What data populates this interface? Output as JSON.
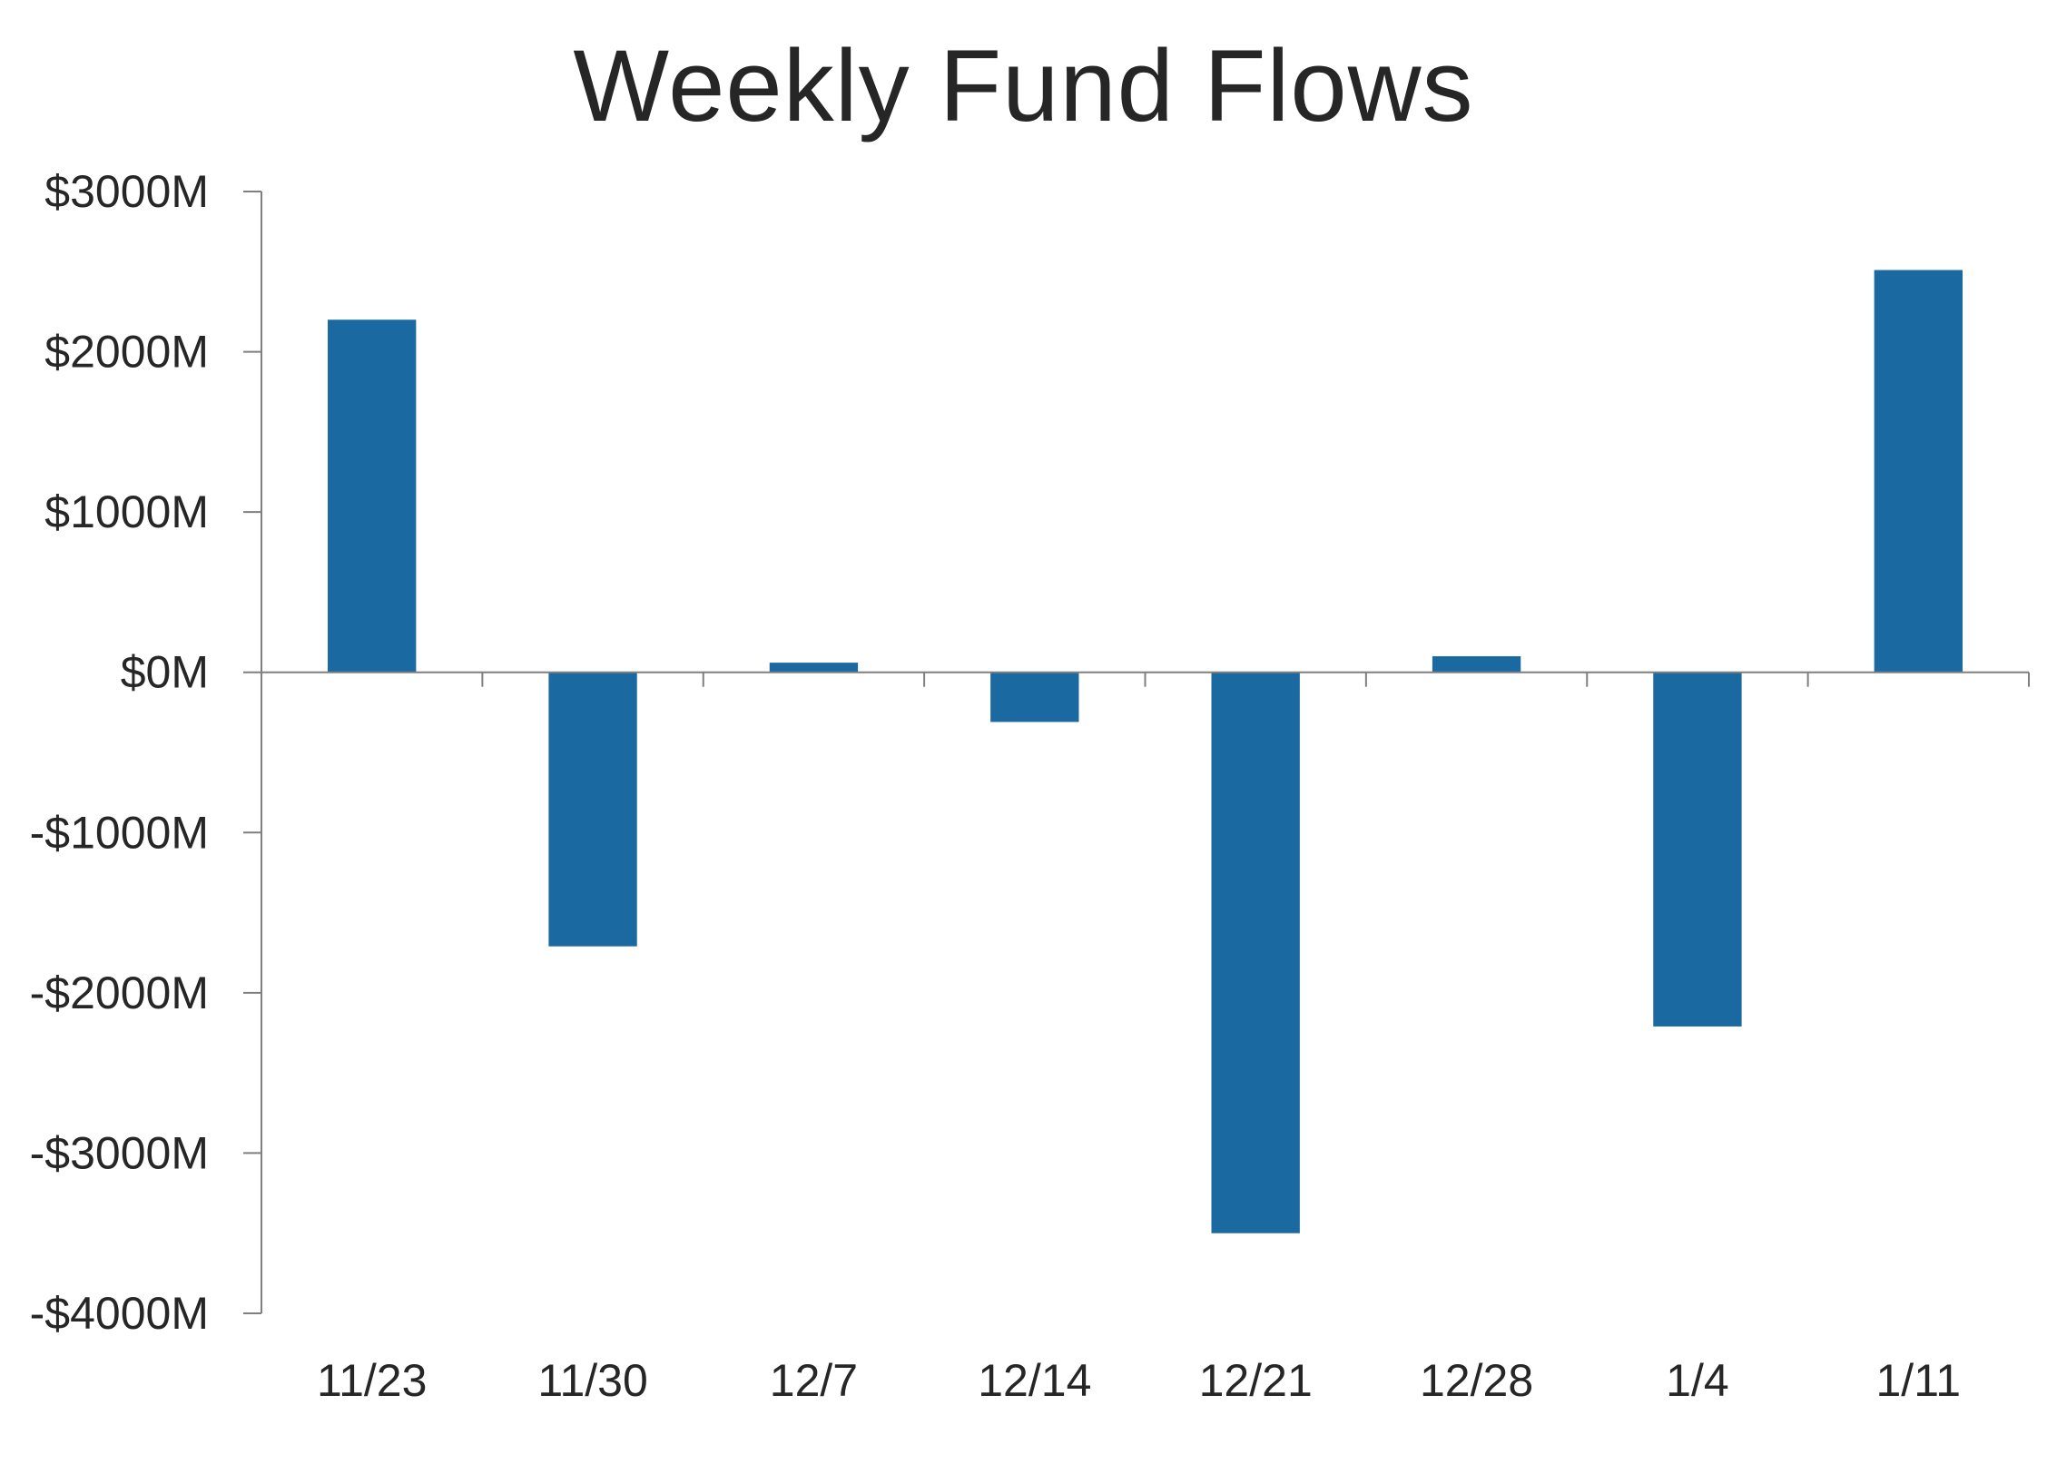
{
  "chart_data": {
    "type": "bar",
    "title": "Weekly Fund Flows",
    "xlabel": "",
    "ylabel": "",
    "categories": [
      "11/23",
      "11/30",
      "12/7",
      "12/14",
      "12/21",
      "12/28",
      "1/4",
      "1/11"
    ],
    "values": [
      2200,
      -1710,
      60,
      -310,
      -3500,
      100,
      -2210,
      2510
    ],
    "ylim": [
      -4000,
      3000
    ],
    "yticks": [
      3000,
      2000,
      1000,
      0,
      -1000,
      -2000,
      -3000,
      -4000
    ],
    "ytick_labels": [
      "$3000M",
      "$2000M",
      "$1000M",
      "$0M",
      "-$1000M",
      "-$2000M",
      "-$3000M",
      "-$4000M"
    ],
    "grid": false,
    "legend": "none",
    "bar_color": "#1a6aa1",
    "axis_color": "#7f7f7f"
  }
}
